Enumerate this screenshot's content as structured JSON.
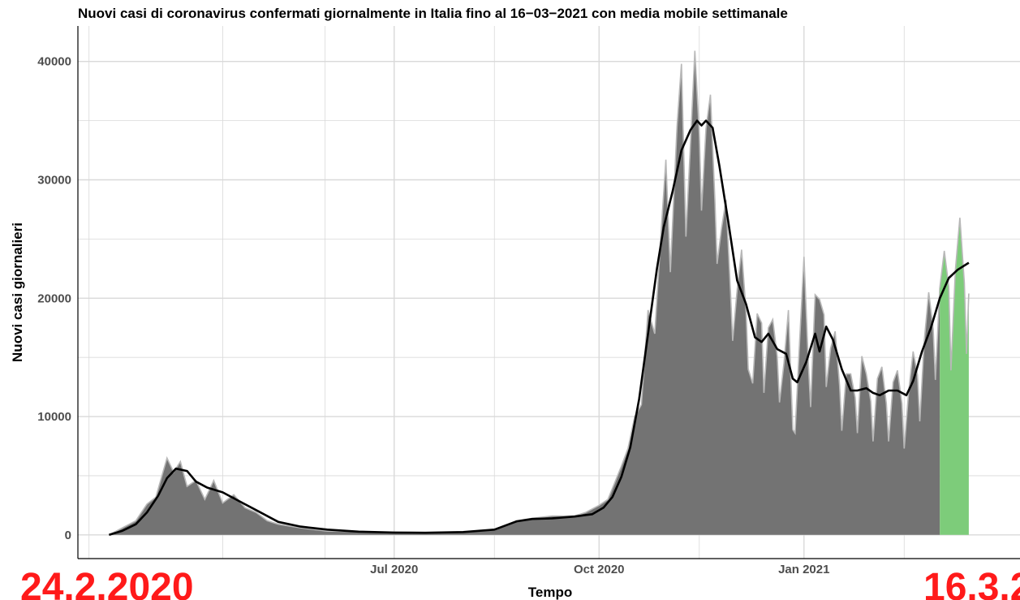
{
  "chart_data": {
    "type": "area",
    "title": "Nuovi casi di coronavirus confermati giornalmente in Italia fino al 16−03−2021 con media mobile settimanale",
    "xlabel": "Tempo",
    "ylabel": "Nuovi casi giornalieri",
    "ylim": [
      -2000,
      43000
    ],
    "y_ticks": [
      0,
      10000,
      20000,
      30000,
      40000
    ],
    "y_tick_labels": [
      "0",
      "10000",
      "20000",
      "30000",
      "40000"
    ],
    "x_ticks": [
      {
        "date": "2020-07-01",
        "label": "Jul 2020"
      },
      {
        "date": "2020-10-01",
        "label": "Oct 2020"
      },
      {
        "date": "2021-01-01",
        "label": "Jan 2021"
      }
    ],
    "x_minor_ticks": [
      "2020-02-15",
      "2020-04-15",
      "2020-05-31",
      "2020-08-15",
      "2020-11-15",
      "2021-02-15"
    ],
    "x_range": [
      "2020-02-10",
      "2021-04-08"
    ],
    "grid": true,
    "highlight_range": [
      "2021-03-03",
      "2021-03-16"
    ],
    "colors": {
      "daily_bars": "#737373",
      "daily_bars_light": "#b8b8b8",
      "highlight": "#7dcc7a",
      "moving_average": "#000000",
      "grid": "#d9d9d9",
      "annotation": "#ff1a1a"
    },
    "series": [
      {
        "type": "area",
        "points": [
          [
            "2020-02-24",
            0
          ],
          [
            "2020-03-01",
            600
          ],
          [
            "2020-03-07",
            1200
          ],
          [
            "2020-03-12",
            2600
          ],
          [
            "2020-03-16",
            3200
          ],
          [
            "2020-03-21",
            6500
          ],
          [
            "2020-03-24",
            5300
          ],
          [
            "2020-03-27",
            6200
          ],
          [
            "2020-03-30",
            4100
          ],
          [
            "2020-04-03",
            4600
          ],
          [
            "2020-04-07",
            3000
          ],
          [
            "2020-04-11",
            4600
          ],
          [
            "2020-04-15",
            2700
          ],
          [
            "2020-04-20",
            3400
          ],
          [
            "2020-04-25",
            2300
          ],
          [
            "2020-04-30",
            1900
          ],
          [
            "2020-05-05",
            1200
          ],
          [
            "2020-05-10",
            900
          ],
          [
            "2020-05-20",
            600
          ],
          [
            "2020-06-01",
            320
          ],
          [
            "2020-06-15",
            300
          ],
          [
            "2020-07-01",
            190
          ],
          [
            "2020-07-15",
            170
          ],
          [
            "2020-08-01",
            250
          ],
          [
            "2020-08-15",
            450
          ],
          [
            "2020-08-25",
            1200
          ],
          [
            "2020-09-01",
            1400
          ],
          [
            "2020-09-10",
            1600
          ],
          [
            "2020-09-20",
            1600
          ],
          [
            "2020-09-25",
            1900
          ],
          [
            "2020-10-01",
            2500
          ],
          [
            "2020-10-05",
            3000
          ],
          [
            "2020-10-08",
            4400
          ],
          [
            "2020-10-11",
            5800
          ],
          [
            "2020-10-14",
            7300
          ],
          [
            "2020-10-17",
            10000
          ],
          [
            "2020-10-20",
            11000
          ],
          [
            "2020-10-23",
            19000
          ],
          [
            "2020-10-26",
            17000
          ],
          [
            "2020-10-29",
            26000
          ],
          [
            "2020-10-31",
            31700
          ],
          [
            "2020-11-02",
            22200
          ],
          [
            "2020-11-05",
            34500
          ],
          [
            "2020-11-07",
            39800
          ],
          [
            "2020-11-09",
            25200
          ],
          [
            "2020-11-11",
            32900
          ],
          [
            "2020-11-13",
            40900
          ],
          [
            "2020-11-15",
            33900
          ],
          [
            "2020-11-16",
            27400
          ],
          [
            "2020-11-18",
            34300
          ],
          [
            "2020-11-20",
            37200
          ],
          [
            "2020-11-22",
            28300
          ],
          [
            "2020-11-23",
            22900
          ],
          [
            "2020-11-25",
            25900
          ],
          [
            "2020-11-27",
            28300
          ],
          [
            "2020-11-29",
            20600
          ],
          [
            "2020-11-30",
            16400
          ],
          [
            "2020-12-02",
            20700
          ],
          [
            "2020-12-04",
            24100
          ],
          [
            "2020-12-06",
            18900
          ],
          [
            "2020-12-07",
            14000
          ],
          [
            "2020-12-09",
            12800
          ],
          [
            "2020-12-11",
            18700
          ],
          [
            "2020-12-13",
            17900
          ],
          [
            "2020-12-14",
            12000
          ],
          [
            "2020-12-16",
            17500
          ],
          [
            "2020-12-18",
            18200
          ],
          [
            "2020-12-20",
            15100
          ],
          [
            "2020-12-21",
            11200
          ],
          [
            "2020-12-23",
            14500
          ],
          [
            "2020-12-25",
            19000
          ],
          [
            "2020-12-27",
            8900
          ],
          [
            "2020-12-28",
            8600
          ],
          [
            "2020-12-30",
            16200
          ],
          [
            "2021-01-01",
            23500
          ],
          [
            "2021-01-03",
            14300
          ],
          [
            "2021-01-04",
            10800
          ],
          [
            "2021-01-06",
            20300
          ],
          [
            "2021-01-08",
            19900
          ],
          [
            "2021-01-10",
            18600
          ],
          [
            "2021-01-11",
            12500
          ],
          [
            "2021-01-13",
            15800
          ],
          [
            "2021-01-15",
            17200
          ],
          [
            "2021-01-17",
            12600
          ],
          [
            "2021-01-18",
            8800
          ],
          [
            "2021-01-20",
            13600
          ],
          [
            "2021-01-22",
            13600
          ],
          [
            "2021-01-24",
            11600
          ],
          [
            "2021-01-25",
            8600
          ],
          [
            "2021-01-27",
            15100
          ],
          [
            "2021-01-29",
            13600
          ],
          [
            "2021-01-31",
            11300
          ],
          [
            "2021-02-01",
            7900
          ],
          [
            "2021-02-03",
            13200
          ],
          [
            "2021-02-05",
            14200
          ],
          [
            "2021-02-07",
            11100
          ],
          [
            "2021-02-08",
            7900
          ],
          [
            "2021-02-10",
            12900
          ],
          [
            "2021-02-12",
            13900
          ],
          [
            "2021-02-14",
            11100
          ],
          [
            "2021-02-15",
            7300
          ],
          [
            "2021-02-17",
            12100
          ],
          [
            "2021-02-19",
            15500
          ],
          [
            "2021-02-21",
            13500
          ],
          [
            "2021-02-22",
            9600
          ],
          [
            "2021-02-24",
            16400
          ],
          [
            "2021-02-26",
            20500
          ],
          [
            "2021-02-28",
            17400
          ],
          [
            "2021-03-01",
            13100
          ],
          [
            "2021-03-03",
            20900
          ],
          [
            "2021-03-05",
            24000
          ],
          [
            "2021-03-07",
            21000
          ],
          [
            "2021-03-08",
            13900
          ],
          [
            "2021-03-10",
            22400
          ],
          [
            "2021-03-12",
            26800
          ],
          [
            "2021-03-14",
            21300
          ],
          [
            "2021-03-15",
            15300
          ],
          [
            "2021-03-16",
            20400
          ]
        ]
      },
      {
        "type": "line",
        "points": [
          [
            "2020-02-24",
            0
          ],
          [
            "2020-03-01",
            350
          ],
          [
            "2020-03-07",
            900
          ],
          [
            "2020-03-12",
            1900
          ],
          [
            "2020-03-17",
            3300
          ],
          [
            "2020-03-21",
            4800
          ],
          [
            "2020-03-25",
            5600
          ],
          [
            "2020-03-30",
            5400
          ],
          [
            "2020-04-03",
            4500
          ],
          [
            "2020-04-08",
            4000
          ],
          [
            "2020-04-15",
            3600
          ],
          [
            "2020-04-22",
            2900
          ],
          [
            "2020-05-01",
            2000
          ],
          [
            "2020-05-10",
            1100
          ],
          [
            "2020-05-20",
            700
          ],
          [
            "2020-06-01",
            450
          ],
          [
            "2020-06-15",
            280
          ],
          [
            "2020-07-01",
            200
          ],
          [
            "2020-07-15",
            180
          ],
          [
            "2020-08-01",
            240
          ],
          [
            "2020-08-15",
            450
          ],
          [
            "2020-08-25",
            1150
          ],
          [
            "2020-09-01",
            1350
          ],
          [
            "2020-09-10",
            1400
          ],
          [
            "2020-09-20",
            1550
          ],
          [
            "2020-09-28",
            1750
          ],
          [
            "2020-10-03",
            2300
          ],
          [
            "2020-10-07",
            3200
          ],
          [
            "2020-10-11",
            4900
          ],
          [
            "2020-10-15",
            7400
          ],
          [
            "2020-10-19",
            11500
          ],
          [
            "2020-10-23",
            17000
          ],
          [
            "2020-10-27",
            22500
          ],
          [
            "2020-10-30",
            26000
          ],
          [
            "2020-11-03",
            29000
          ],
          [
            "2020-11-07",
            32500
          ],
          [
            "2020-11-11",
            34200
          ],
          [
            "2020-11-14",
            35000
          ],
          [
            "2020-11-16",
            34600
          ],
          [
            "2020-11-18",
            35000
          ],
          [
            "2020-11-21",
            34400
          ],
          [
            "2020-11-24",
            31200
          ],
          [
            "2020-11-28",
            26500
          ],
          [
            "2020-12-02",
            21500
          ],
          [
            "2020-12-06",
            19500
          ],
          [
            "2020-12-10",
            16700
          ],
          [
            "2020-12-13",
            16300
          ],
          [
            "2020-12-16",
            17000
          ],
          [
            "2020-12-20",
            15700
          ],
          [
            "2020-12-24",
            15300
          ],
          [
            "2020-12-27",
            13200
          ],
          [
            "2020-12-29",
            12900
          ],
          [
            "2021-01-02",
            14600
          ],
          [
            "2021-01-06",
            17000
          ],
          [
            "2021-01-08",
            15500
          ],
          [
            "2021-01-11",
            17600
          ],
          [
            "2021-01-14",
            16500
          ],
          [
            "2021-01-18",
            14000
          ],
          [
            "2021-01-22",
            12200
          ],
          [
            "2021-01-25",
            12200
          ],
          [
            "2021-01-29",
            12400
          ],
          [
            "2021-02-01",
            12000
          ],
          [
            "2021-02-04",
            11800
          ],
          [
            "2021-02-08",
            12200
          ],
          [
            "2021-02-12",
            12200
          ],
          [
            "2021-02-16",
            11800
          ],
          [
            "2021-02-19",
            13000
          ],
          [
            "2021-02-23",
            15500
          ],
          [
            "2021-02-27",
            17500
          ],
          [
            "2021-03-03",
            20000
          ],
          [
            "2021-03-07",
            21700
          ],
          [
            "2021-03-11",
            22400
          ],
          [
            "2021-03-16",
            23000
          ]
        ]
      }
    ],
    "annotations": [
      {
        "text": "24.2.2020",
        "anchor": "bottom-left"
      },
      {
        "text": "16.3.2",
        "anchor": "bottom-right"
      }
    ]
  }
}
